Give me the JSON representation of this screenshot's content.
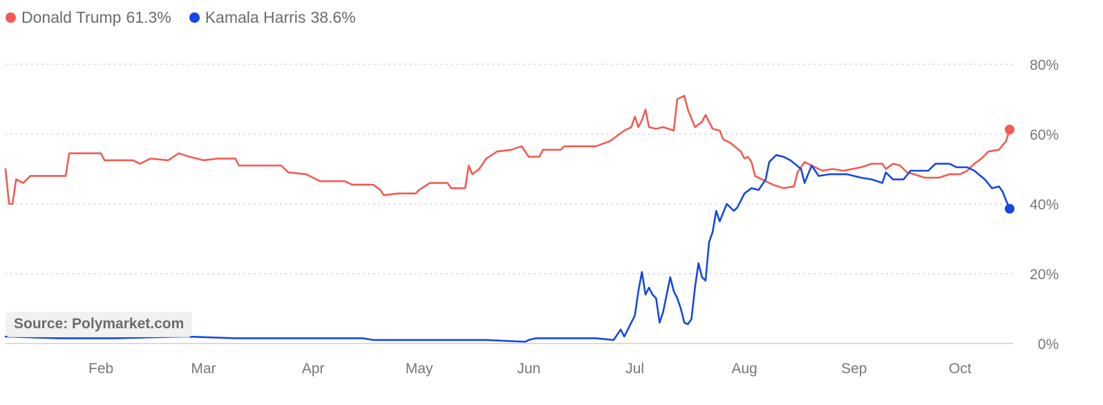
{
  "legend": [
    {
      "name": "Donald Trump",
      "value": "61.3%",
      "color": "#f25a52"
    },
    {
      "name": "Kamala Harris",
      "value": "38.6%",
      "color": "#1446e6"
    }
  ],
  "source": "Source: Polymarket.com",
  "chart_data": {
    "type": "line",
    "x_unit": "date",
    "xlim": [
      "2024-01-05",
      "2024-10-16"
    ],
    "ylim": [
      0,
      80
    ],
    "y_ticks": [
      0,
      20,
      40,
      60,
      80
    ],
    "y_tick_labels": [
      "0%",
      "20%",
      "40%",
      "60%",
      "80%"
    ],
    "x_ticks": [
      "2024-02-01",
      "2024-03-01",
      "2024-04-01",
      "2024-05-01",
      "2024-06-01",
      "2024-07-01",
      "2024-08-01",
      "2024-09-01",
      "2024-10-01"
    ],
    "x_tick_labels": [
      "Feb",
      "Mar",
      "Apr",
      "May",
      "Jun",
      "Jul",
      "Aug",
      "Sep",
      "Oct"
    ],
    "grid": "horizontal dotted",
    "legend_position": "top-left",
    "series": [
      {
        "name": "Donald Trump",
        "color": "#f25a52",
        "points": [
          [
            "2024-01-05",
            50
          ],
          [
            "2024-01-06",
            40
          ],
          [
            "2024-01-07",
            40
          ],
          [
            "2024-01-08",
            47
          ],
          [
            "2024-01-10",
            46
          ],
          [
            "2024-01-12",
            48
          ],
          [
            "2024-01-15",
            48
          ],
          [
            "2024-01-22",
            48
          ],
          [
            "2024-01-23",
            54.5
          ],
          [
            "2024-02-01",
            54.5
          ],
          [
            "2024-02-02",
            52.5
          ],
          [
            "2024-02-10",
            52.5
          ],
          [
            "2024-02-12",
            51.5
          ],
          [
            "2024-02-15",
            53
          ],
          [
            "2024-02-20",
            52.5
          ],
          [
            "2024-02-23",
            54.5
          ],
          [
            "2024-02-26",
            53.5
          ],
          [
            "2024-03-01",
            52.5
          ],
          [
            "2024-03-05",
            53
          ],
          [
            "2024-03-10",
            53
          ],
          [
            "2024-03-11",
            51
          ],
          [
            "2024-03-23",
            51
          ],
          [
            "2024-03-25",
            49
          ],
          [
            "2024-03-30",
            48.5
          ],
          [
            "2024-04-03",
            46.5
          ],
          [
            "2024-04-10",
            46.5
          ],
          [
            "2024-04-12",
            45.5
          ],
          [
            "2024-04-18",
            45.5
          ],
          [
            "2024-04-20",
            44
          ],
          [
            "2024-04-21",
            42.5
          ],
          [
            "2024-04-25",
            43
          ],
          [
            "2024-04-30",
            43
          ],
          [
            "2024-05-01",
            44
          ],
          [
            "2024-05-04",
            46
          ],
          [
            "2024-05-09",
            46
          ],
          [
            "2024-05-10",
            44.5
          ],
          [
            "2024-05-14",
            44.5
          ],
          [
            "2024-05-15",
            51
          ],
          [
            "2024-05-16",
            48.5
          ],
          [
            "2024-05-18",
            50
          ],
          [
            "2024-05-20",
            53
          ],
          [
            "2024-05-23",
            55
          ],
          [
            "2024-05-27",
            55.5
          ],
          [
            "2024-05-30",
            56.5
          ],
          [
            "2024-06-01",
            53.5
          ],
          [
            "2024-06-04",
            53.5
          ],
          [
            "2024-06-05",
            55.5
          ],
          [
            "2024-06-10",
            55.5
          ],
          [
            "2024-06-11",
            56.5
          ],
          [
            "2024-06-20",
            56.5
          ],
          [
            "2024-06-24",
            58
          ],
          [
            "2024-06-26",
            59.5
          ],
          [
            "2024-06-28",
            61
          ],
          [
            "2024-06-30",
            62
          ],
          [
            "2024-07-01",
            65
          ],
          [
            "2024-07-02",
            62
          ],
          [
            "2024-07-03",
            64
          ],
          [
            "2024-07-04",
            67
          ],
          [
            "2024-07-05",
            62
          ],
          [
            "2024-07-07",
            61.5
          ],
          [
            "2024-07-09",
            62
          ],
          [
            "2024-07-12",
            61
          ],
          [
            "2024-07-13",
            70
          ],
          [
            "2024-07-15",
            71
          ],
          [
            "2024-07-16",
            67
          ],
          [
            "2024-07-18",
            62
          ],
          [
            "2024-07-20",
            63.5
          ],
          [
            "2024-07-21",
            65.5
          ],
          [
            "2024-07-23",
            61.5
          ],
          [
            "2024-07-25",
            61
          ],
          [
            "2024-07-26",
            58.5
          ],
          [
            "2024-07-28",
            57.5
          ],
          [
            "2024-07-31",
            55
          ],
          [
            "2024-08-01",
            53
          ],
          [
            "2024-08-02",
            53.5
          ],
          [
            "2024-08-03",
            52
          ],
          [
            "2024-08-04",
            48
          ],
          [
            "2024-08-06",
            47
          ],
          [
            "2024-08-09",
            45.5
          ],
          [
            "2024-08-12",
            44.5
          ],
          [
            "2024-08-15",
            45
          ],
          [
            "2024-08-16",
            49
          ],
          [
            "2024-08-18",
            52
          ],
          [
            "2024-08-20",
            51
          ],
          [
            "2024-08-23",
            49.5
          ],
          [
            "2024-08-26",
            50
          ],
          [
            "2024-08-29",
            49.5
          ],
          [
            "2024-09-03",
            50.5
          ],
          [
            "2024-09-06",
            51.5
          ],
          [
            "2024-09-09",
            51.5
          ],
          [
            "2024-09-10",
            50
          ],
          [
            "2024-09-12",
            51.5
          ],
          [
            "2024-09-14",
            51
          ],
          [
            "2024-09-16",
            49
          ],
          [
            "2024-09-18",
            48.5
          ],
          [
            "2024-09-21",
            47.5
          ],
          [
            "2024-09-25",
            47.5
          ],
          [
            "2024-09-28",
            48.5
          ],
          [
            "2024-10-01",
            48.5
          ],
          [
            "2024-10-03",
            49.5
          ],
          [
            "2024-10-05",
            51.5
          ],
          [
            "2024-10-07",
            53
          ],
          [
            "2024-10-09",
            55
          ],
          [
            "2024-10-12",
            55.5
          ],
          [
            "2024-10-14",
            58
          ],
          [
            "2024-10-15",
            61.3
          ]
        ]
      },
      {
        "name": "Kamala Harris",
        "color": "#1446e6",
        "points": [
          [
            "2024-01-05",
            2
          ],
          [
            "2024-01-20",
            1.5
          ],
          [
            "2024-02-05",
            1.5
          ],
          [
            "2024-02-25",
            2
          ],
          [
            "2024-03-10",
            1.5
          ],
          [
            "2024-04-15",
            1.5
          ],
          [
            "2024-04-18",
            1
          ],
          [
            "2024-05-15",
            1
          ],
          [
            "2024-05-20",
            1
          ],
          [
            "2024-05-31",
            0.5
          ],
          [
            "2024-06-01",
            1
          ],
          [
            "2024-06-03",
            1.5
          ],
          [
            "2024-06-20",
            1.5
          ],
          [
            "2024-06-25",
            1
          ],
          [
            "2024-06-27",
            4
          ],
          [
            "2024-06-28",
            2
          ],
          [
            "2024-07-01",
            8
          ],
          [
            "2024-07-02",
            15
          ],
          [
            "2024-07-03",
            20.5
          ],
          [
            "2024-07-04",
            14
          ],
          [
            "2024-07-05",
            16
          ],
          [
            "2024-07-06",
            14
          ],
          [
            "2024-07-07",
            13
          ],
          [
            "2024-07-08",
            6
          ],
          [
            "2024-07-09",
            9
          ],
          [
            "2024-07-10",
            14
          ],
          [
            "2024-07-11",
            19
          ],
          [
            "2024-07-12",
            15
          ],
          [
            "2024-07-13",
            13
          ],
          [
            "2024-07-14",
            10
          ],
          [
            "2024-07-15",
            6
          ],
          [
            "2024-07-16",
            5.5
          ],
          [
            "2024-07-17",
            7
          ],
          [
            "2024-07-18",
            16
          ],
          [
            "2024-07-19",
            23
          ],
          [
            "2024-07-20",
            19
          ],
          [
            "2024-07-21",
            18
          ],
          [
            "2024-07-22",
            29
          ],
          [
            "2024-07-23",
            32
          ],
          [
            "2024-07-24",
            38
          ],
          [
            "2024-07-25",
            35
          ],
          [
            "2024-07-27",
            40
          ],
          [
            "2024-07-29",
            38
          ],
          [
            "2024-07-30",
            39
          ],
          [
            "2024-08-01",
            43
          ],
          [
            "2024-08-03",
            44.5
          ],
          [
            "2024-08-05",
            44
          ],
          [
            "2024-08-07",
            47
          ],
          [
            "2024-08-08",
            52
          ],
          [
            "2024-08-10",
            54
          ],
          [
            "2024-08-12",
            53.5
          ],
          [
            "2024-08-14",
            52.5
          ],
          [
            "2024-08-17",
            50
          ],
          [
            "2024-08-18",
            46
          ],
          [
            "2024-08-20",
            51
          ],
          [
            "2024-08-22",
            48
          ],
          [
            "2024-08-25",
            48.5
          ],
          [
            "2024-08-30",
            48.5
          ],
          [
            "2024-09-03",
            47.5
          ],
          [
            "2024-09-06",
            47
          ],
          [
            "2024-09-09",
            46
          ],
          [
            "2024-09-10",
            49
          ],
          [
            "2024-09-12",
            47
          ],
          [
            "2024-09-15",
            47
          ],
          [
            "2024-09-17",
            49.5
          ],
          [
            "2024-09-22",
            49.5
          ],
          [
            "2024-09-24",
            51.5
          ],
          [
            "2024-09-28",
            51.5
          ],
          [
            "2024-09-30",
            50.5
          ],
          [
            "2024-10-03",
            50.5
          ],
          [
            "2024-10-05",
            49.5
          ],
          [
            "2024-10-08",
            47
          ],
          [
            "2024-10-10",
            44.5
          ],
          [
            "2024-10-12",
            45
          ],
          [
            "2024-10-13",
            43.5
          ],
          [
            "2024-10-14",
            41
          ],
          [
            "2024-10-15",
            38.6
          ]
        ]
      }
    ]
  }
}
